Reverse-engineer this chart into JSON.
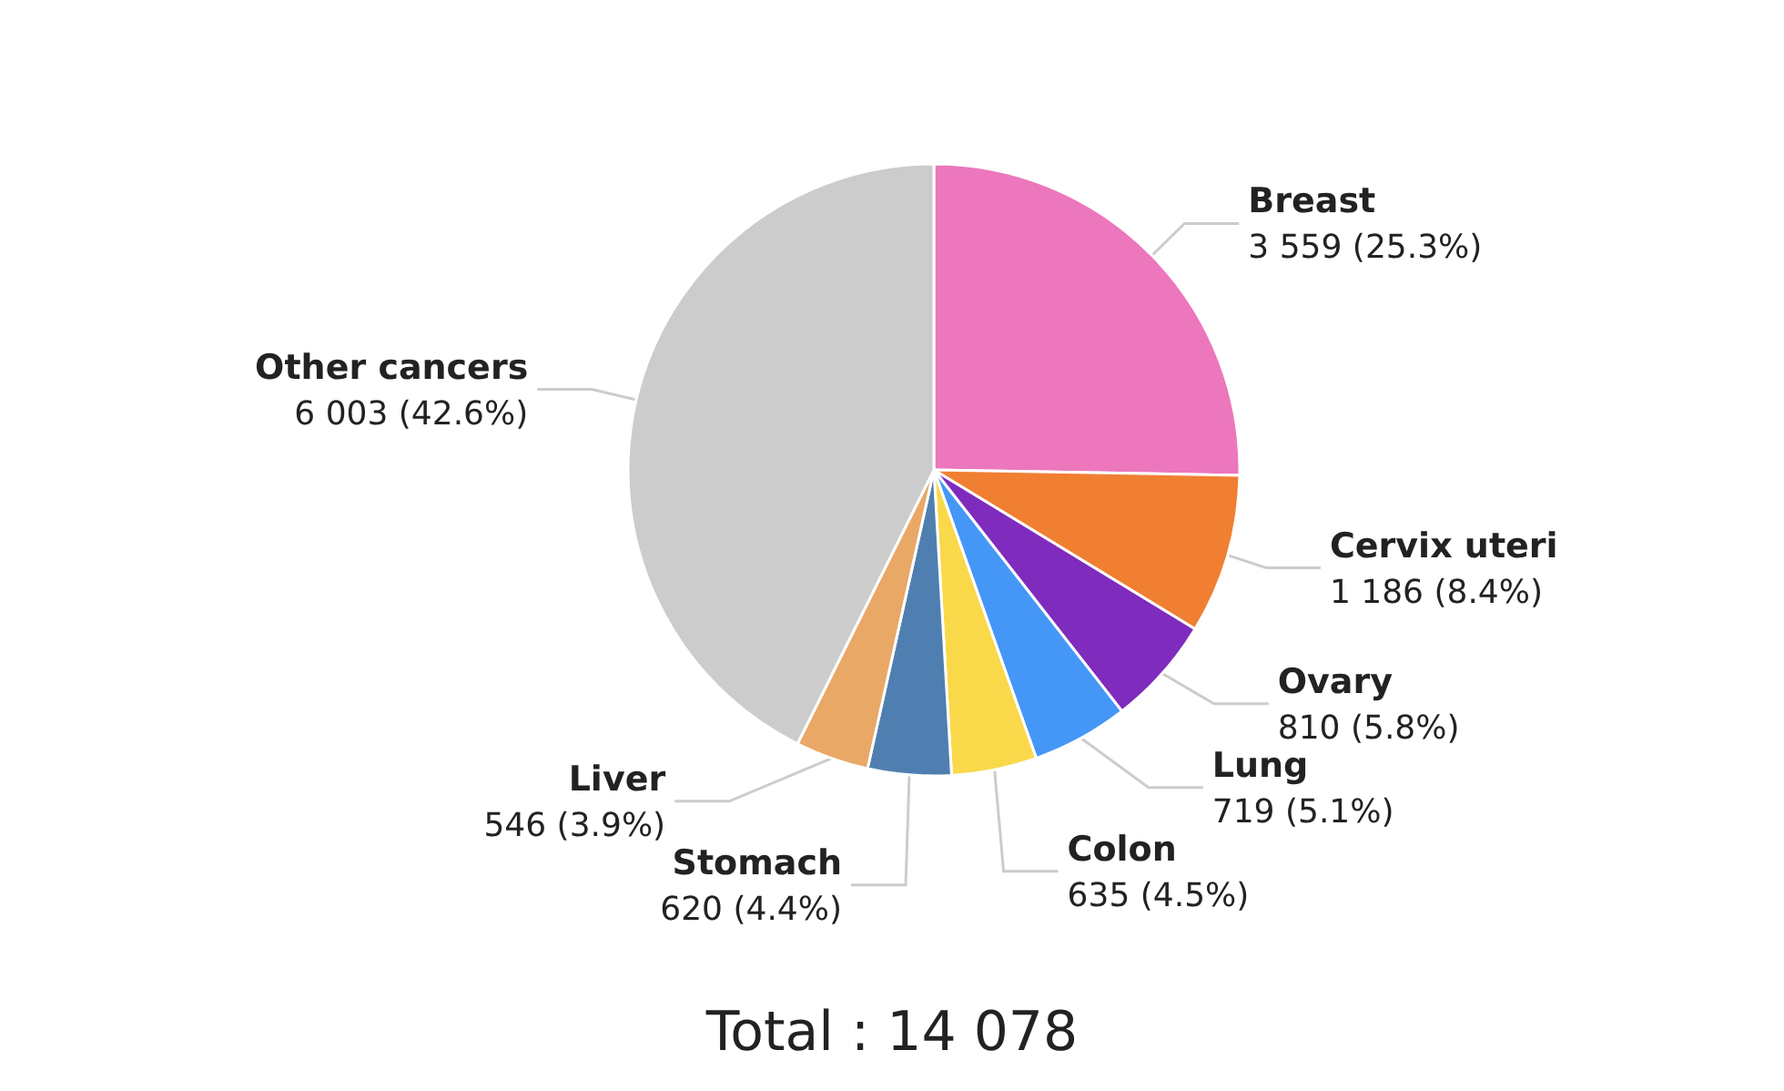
{
  "chart_data": {
    "type": "pie",
    "categories": [
      "Breast",
      "Cervix uteri",
      "Ovary",
      "Lung",
      "Colon",
      "Stomach",
      "Liver",
      "Other cancers"
    ],
    "values": [
      3559,
      1186,
      810,
      719,
      635,
      620,
      546,
      6003
    ],
    "colors": [
      "#ec77bd",
      "#f07f32",
      "#7f2bbd",
      "#4597f7",
      "#f9d84a",
      "#4f7fb0",
      "#e9a866",
      "#cccccc"
    ],
    "value_labels": [
      "3 559 (25.3%)",
      "1 186 (8.4%)",
      "810 (5.8%)",
      "719 (5.1%)",
      "635 (4.5%)",
      "620 (4.4%)",
      "546 (3.9%)",
      "6 003 (42.6%)"
    ],
    "annotations": [
      "Total : 14 078"
    ],
    "legend": false
  }
}
